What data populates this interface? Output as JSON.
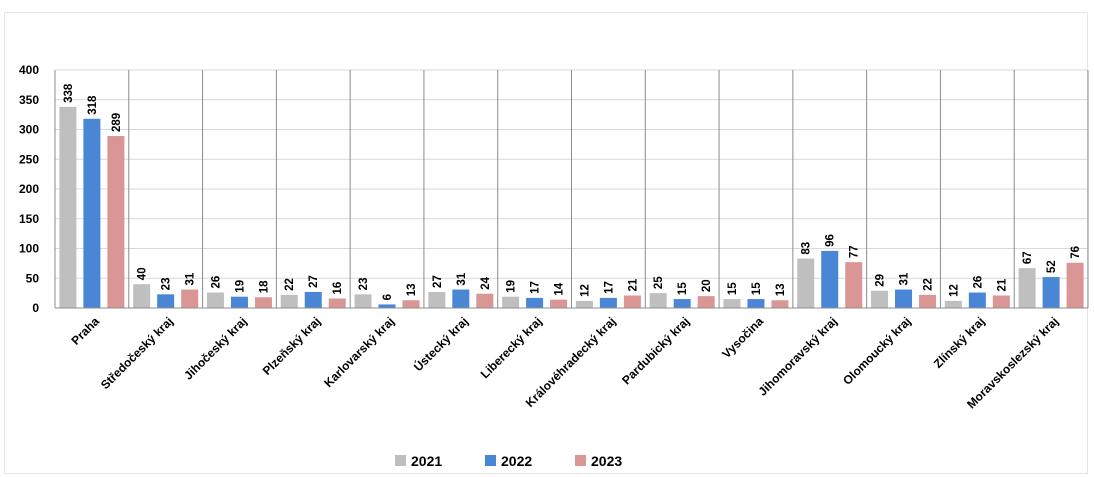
{
  "chart_data": {
    "type": "bar",
    "title": "",
    "xlabel": "",
    "ylabel": "",
    "ylim": [
      0,
      400
    ],
    "yticks": [
      0,
      50,
      100,
      150,
      200,
      250,
      300,
      350,
      400
    ],
    "grid": true,
    "legend_position": "bottom",
    "categories": [
      "Praha",
      "Středočeský kraj",
      "Jihočeský kraj",
      "Plzeňský kraj",
      "Karlovarský kraj",
      "Ústecký kraj",
      "Liberecký kraj",
      "Královéhradecký kraj",
      "Pardubický kraj",
      "Vysočina",
      "Jihomoravský kraj",
      "Olomoucký kraj",
      "Zlínský kraj",
      "Moravskoslezský kraj"
    ],
    "series": [
      {
        "name": "2021",
        "color": "#bfbfbf",
        "values": [
          338,
          40,
          26,
          22,
          23,
          27,
          19,
          12,
          25,
          15,
          83,
          29,
          12,
          67
        ]
      },
      {
        "name": "2022",
        "color": "#4a86d6",
        "values": [
          318,
          23,
          19,
          27,
          6,
          31,
          17,
          17,
          15,
          15,
          96,
          31,
          26,
          52
        ]
      },
      {
        "name": "2023",
        "color": "#d99694",
        "values": [
          289,
          31,
          18,
          16,
          13,
          24,
          14,
          21,
          20,
          13,
          77,
          22,
          21,
          76
        ]
      }
    ]
  }
}
